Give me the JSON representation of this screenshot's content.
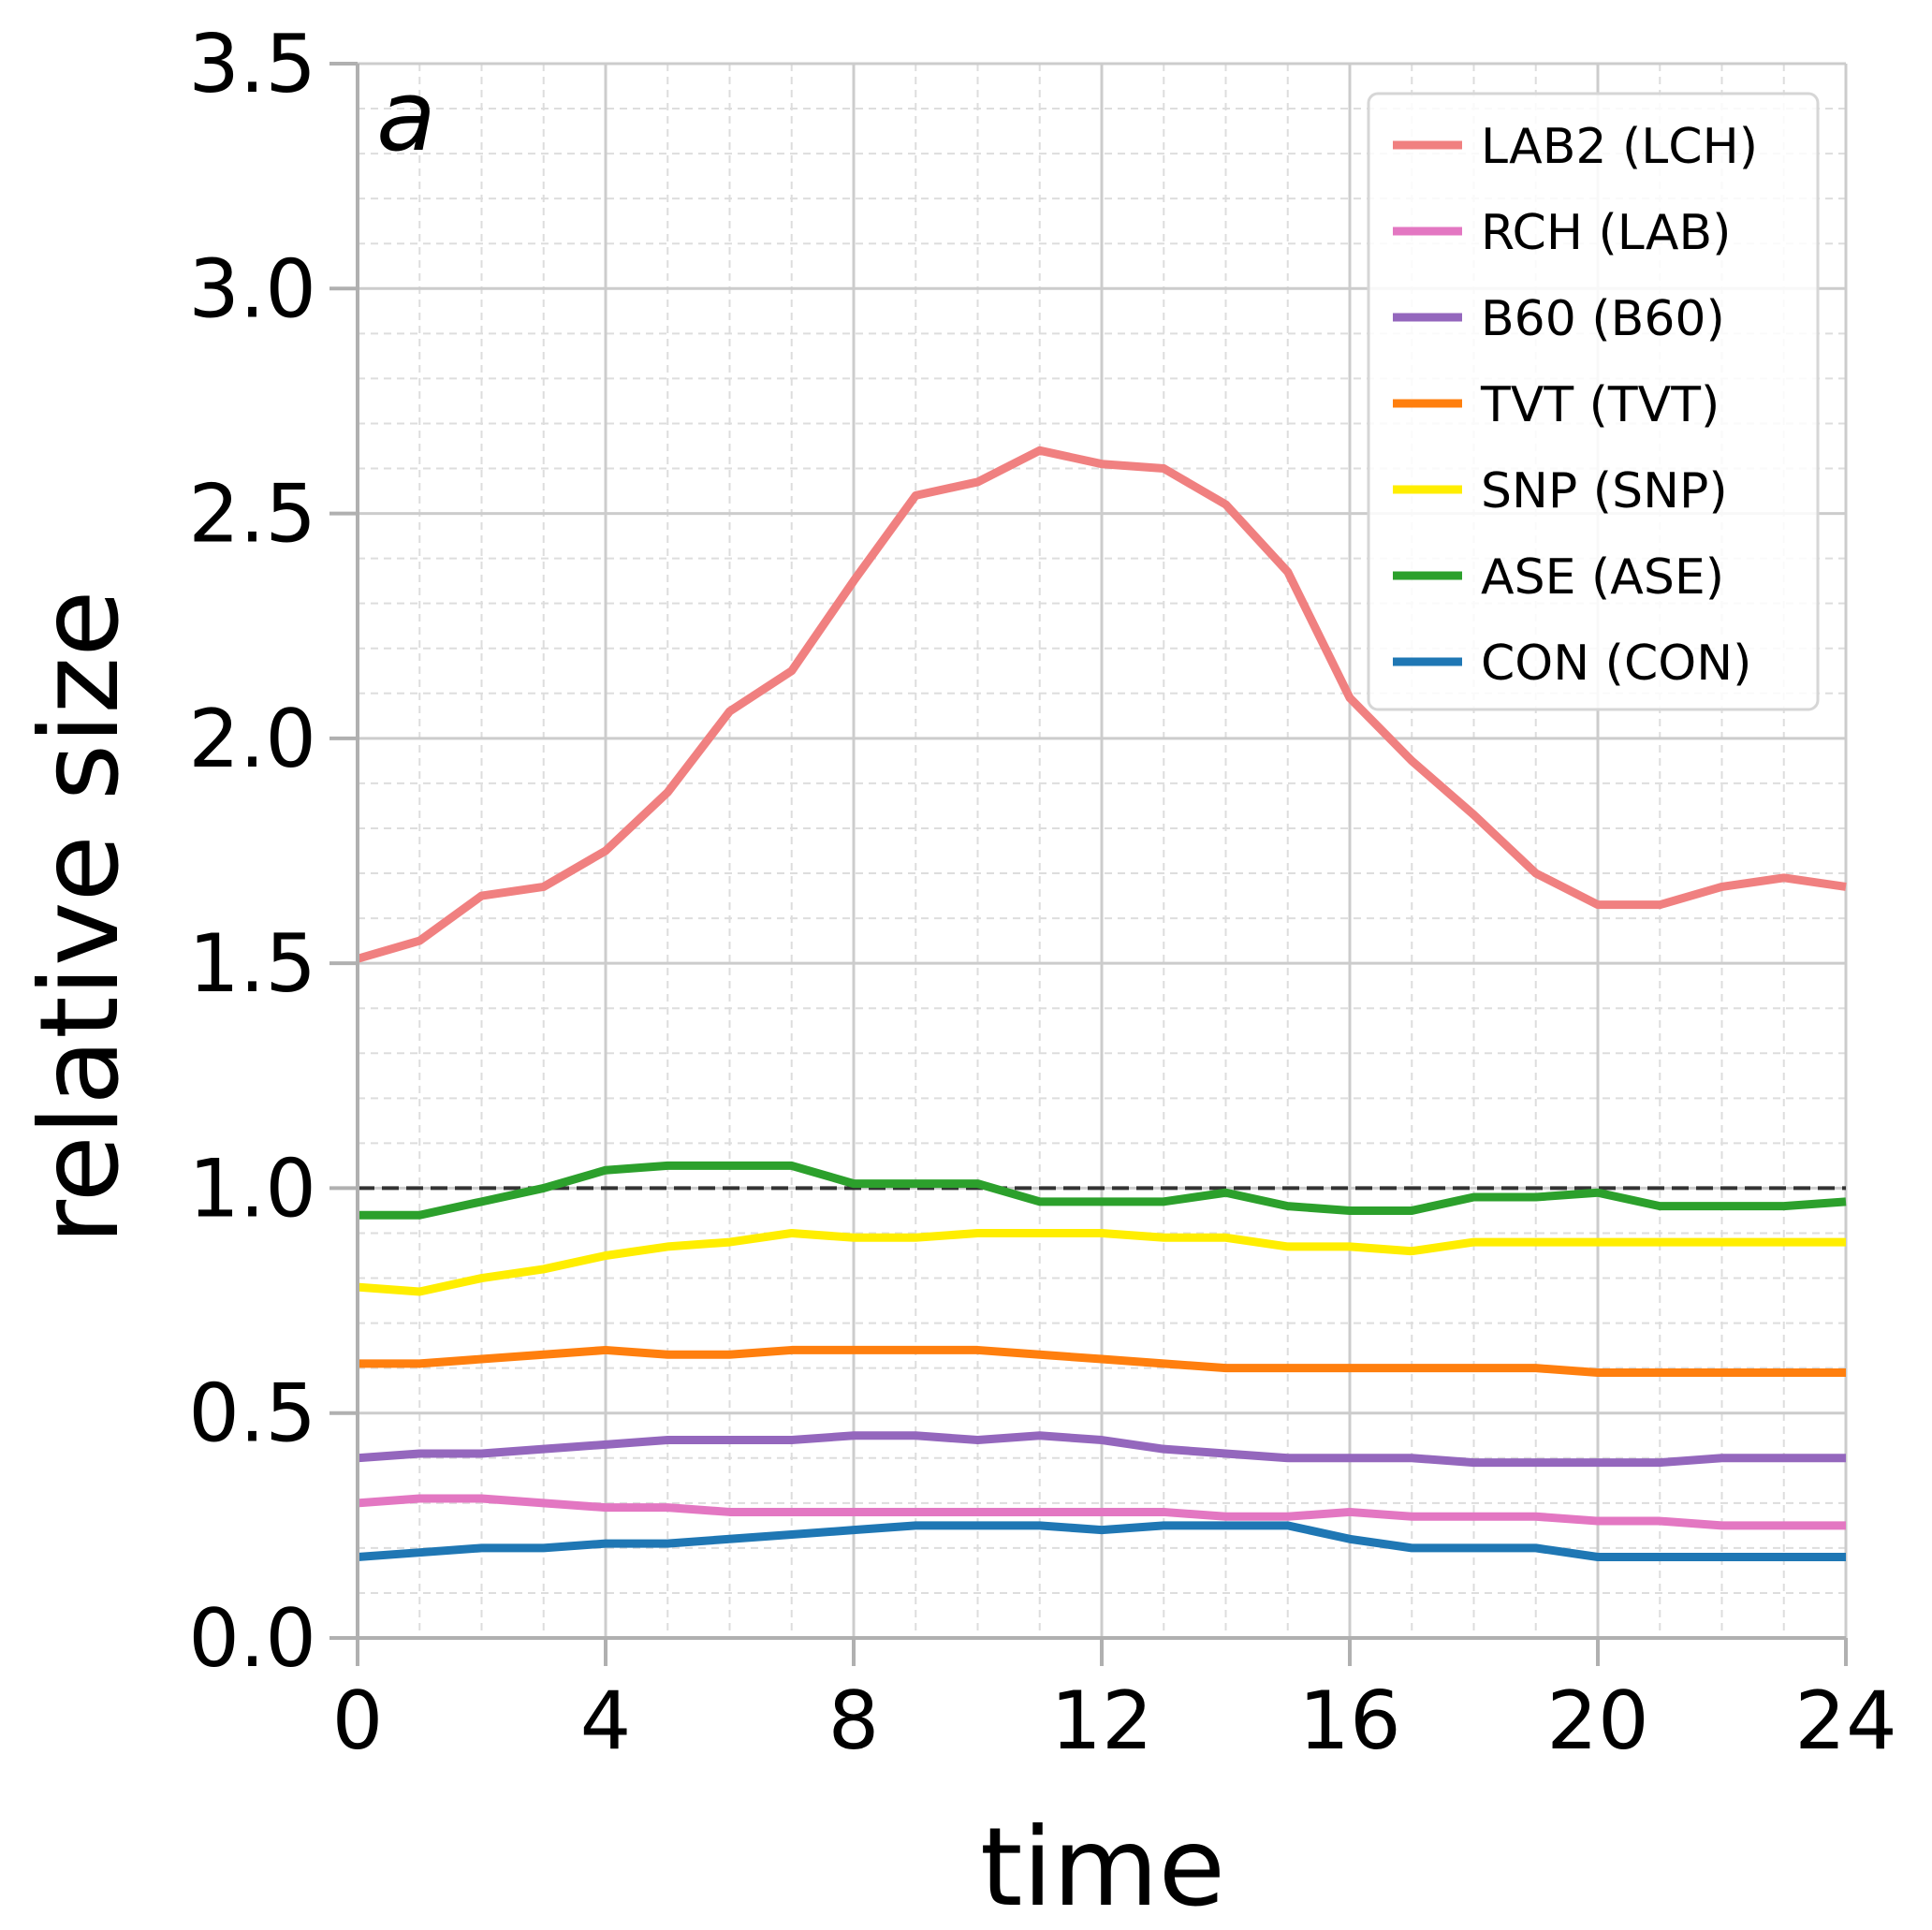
{
  "chart_data": {
    "type": "line",
    "panel_label": "a",
    "xlabel": "time",
    "ylabel": "relative size",
    "xlim": [
      0,
      24
    ],
    "ylim": [
      0,
      3.5
    ],
    "xticks": [
      "0",
      "4",
      "8",
      "12",
      "16",
      "20",
      "24"
    ],
    "yticks": [
      "0.0",
      "0.5",
      "1.0",
      "1.5",
      "2.0",
      "2.5",
      "3.0",
      "3.5"
    ],
    "grid": "major solid, minor dashed",
    "reference_line": 1.0,
    "legend_position": "top-right",
    "x": [
      0,
      1,
      2,
      3,
      4,
      5,
      6,
      7,
      8,
      9,
      10,
      11,
      12,
      13,
      14,
      15,
      16,
      17,
      18,
      19,
      20,
      21,
      22,
      23,
      24
    ],
    "series": [
      {
        "name": "LAB2 (LCH)",
        "color": "#f08080",
        "values": [
          1.51,
          1.55,
          1.65,
          1.67,
          1.75,
          1.88,
          2.06,
          2.15,
          2.35,
          2.54,
          2.57,
          2.64,
          2.61,
          2.6,
          2.52,
          2.37,
          2.09,
          1.95,
          1.83,
          1.7,
          1.63,
          1.63,
          1.67,
          1.69,
          1.67
        ]
      },
      {
        "name": "RCH (LAB)",
        "color": "#e377c2",
        "values": [
          0.3,
          0.31,
          0.31,
          0.3,
          0.29,
          0.29,
          0.28,
          0.28,
          0.28,
          0.28,
          0.28,
          0.28,
          0.28,
          0.28,
          0.27,
          0.27,
          0.28,
          0.27,
          0.27,
          0.27,
          0.26,
          0.26,
          0.25,
          0.25,
          0.25
        ]
      },
      {
        "name": "B60 (B60)",
        "color": "#9467bd",
        "values": [
          0.4,
          0.41,
          0.41,
          0.42,
          0.43,
          0.44,
          0.44,
          0.44,
          0.45,
          0.45,
          0.44,
          0.45,
          0.44,
          0.42,
          0.41,
          0.4,
          0.4,
          0.4,
          0.39,
          0.39,
          0.39,
          0.39,
          0.4,
          0.4,
          0.4
        ]
      },
      {
        "name": "TVT (TVT)",
        "color": "#ff7f0e",
        "values": [
          0.61,
          0.61,
          0.62,
          0.63,
          0.64,
          0.63,
          0.63,
          0.64,
          0.64,
          0.64,
          0.64,
          0.63,
          0.62,
          0.61,
          0.6,
          0.6,
          0.6,
          0.6,
          0.6,
          0.6,
          0.59,
          0.59,
          0.59,
          0.59,
          0.59
        ]
      },
      {
        "name": "SNP (SNP)",
        "color": "#ffee00",
        "values": [
          0.78,
          0.77,
          0.8,
          0.82,
          0.85,
          0.87,
          0.88,
          0.9,
          0.89,
          0.89,
          0.9,
          0.9,
          0.9,
          0.89,
          0.89,
          0.87,
          0.87,
          0.86,
          0.88,
          0.88,
          0.88,
          0.88,
          0.88,
          0.88,
          0.88
        ]
      },
      {
        "name": "ASE (ASE)",
        "color": "#2ca02c",
        "values": [
          0.94,
          0.94,
          0.97,
          1.0,
          1.04,
          1.05,
          1.05,
          1.05,
          1.01,
          1.01,
          1.01,
          0.97,
          0.97,
          0.97,
          0.99,
          0.96,
          0.95,
          0.95,
          0.98,
          0.98,
          0.99,
          0.96,
          0.96,
          0.96,
          0.97
        ]
      },
      {
        "name": "CON (CON)",
        "color": "#1f77b4",
        "values": [
          0.18,
          0.19,
          0.2,
          0.2,
          0.21,
          0.21,
          0.22,
          0.23,
          0.24,
          0.25,
          0.25,
          0.25,
          0.24,
          0.25,
          0.25,
          0.25,
          0.22,
          0.2,
          0.2,
          0.2,
          0.18,
          0.18,
          0.18,
          0.18,
          0.18
        ]
      }
    ]
  }
}
